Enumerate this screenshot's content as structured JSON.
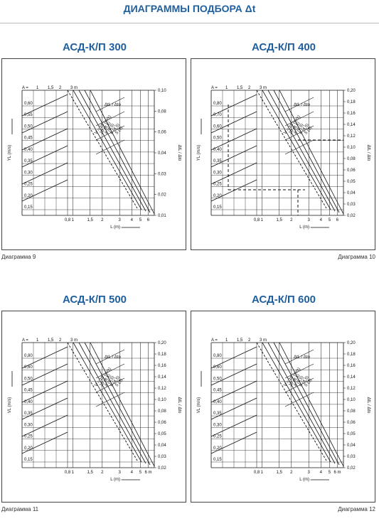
{
  "header": {
    "title": "ДИАГРАММЫ ПОДБОРА Δt"
  },
  "diagrams": [
    {
      "title": "АСД-К/П 300",
      "caption": "Диаграмма 9",
      "a_label": "A =",
      "a_ticks": [
        "1",
        "1,5",
        "2",
        "3 m"
      ],
      "y_label": "YL (m/s)",
      "y_ticks": [
        "0,60",
        "0,55",
        "0,50",
        "0,45",
        "0,40",
        "0,35",
        "0,30",
        "0,25",
        "0,20",
        "0,15"
      ],
      "x_label": "L (m)",
      "x_ticks": [
        "0,8",
        "1",
        "1,5",
        "2",
        "3",
        "4",
        "5",
        "6"
      ],
      "y2_label": "ΔtL / Δto",
      "y2_ticks": [
        "0,10",
        "0,08",
        "0,06",
        "0,04",
        "0,03",
        "0,02",
        "0,01"
      ],
      "legend": "ΔtL / Δto",
      "curve_labels": [
        "V = 15 (m/s)",
        "10 (8,5)",
        "8 (6,5)",
        "6 (4,5)",
        "5 (3)"
      ]
    },
    {
      "title": "АСД-К/П 400",
      "caption": "Диаграмма 10",
      "a_label": "A =",
      "a_ticks": [
        "1",
        "1,5",
        "2",
        "3 m"
      ],
      "y_label": "YL (m/s)",
      "y_ticks": [
        "0,80",
        "0,70",
        "0,60",
        "0,50",
        "0,40",
        "0,35",
        "0,30",
        "0,25",
        "0,20",
        "0,15"
      ],
      "x_label": "L (m)",
      "x_ticks": [
        "0,8",
        "1",
        "1,5",
        "2",
        "3",
        "4",
        "5",
        "6"
      ],
      "y2_label": "ΔtL / Δto",
      "y2_ticks": [
        "0,20",
        "0,18",
        "0,16",
        "0,14",
        "0,12",
        "0,10",
        "0,08",
        "0,06",
        "0,05",
        "0,04",
        "0,03",
        "0,02"
      ],
      "legend": "ΔtL / Δto",
      "curve_labels": [
        "V = 15 (m/s)",
        "10 (8,5)",
        "8 (6,5)",
        "6 (4,5)",
        "5 (3)"
      ]
    },
    {
      "title": "АСД-К/П 500",
      "caption": "Диаграмма 11",
      "a_label": "A =",
      "a_ticks": [
        "1",
        "1,5",
        "2",
        "3 m"
      ],
      "y_label": "VL (m/s)",
      "y_ticks": [
        "0,80",
        "0,60",
        "0,50",
        "0,45",
        "0,40",
        "0,35",
        "0,30",
        "0,25",
        "0,20",
        "0,15"
      ],
      "x_label": "L (m)",
      "x_ticks": [
        "0,8",
        "1",
        "1,5",
        "2",
        "3",
        "4",
        "5",
        "6 m"
      ],
      "y2_label": "ΔtL / Δto",
      "y2_ticks": [
        "0,20",
        "0,18",
        "0,16",
        "0,14",
        "0,12",
        "0,10",
        "0,08",
        "0,06",
        "0,05",
        "0,04",
        "0,03",
        "0,02"
      ],
      "legend": "ΔtL / Δto",
      "curve_labels": [
        "V = 15 (m/s)",
        "10 (8,5)",
        "8 (6,5)",
        "6 (4,5)",
        "5 (3)"
      ]
    },
    {
      "title": "АСД-К/П 600",
      "caption": "Диаграмма 12",
      "a_label": "A =",
      "a_ticks": [
        "1",
        "1,5",
        "2",
        "3 m"
      ],
      "y_label": "VL (m/s)",
      "y_ticks": [
        "0,80",
        "0,60",
        "0,50",
        "0,45",
        "0,40",
        "0,35",
        "0,30",
        "0,25",
        "0,20",
        "0,15"
      ],
      "x_label": "L (m)",
      "x_ticks": [
        "0,8",
        "1",
        "1,5",
        "2",
        "3",
        "4",
        "5",
        "6 m"
      ],
      "y2_label": "ΔtL / Δto",
      "y2_ticks": [
        "0,20",
        "0,18",
        "0,16",
        "0,14",
        "0,12",
        "0,10",
        "0,08",
        "0,06",
        "0,05",
        "0,04",
        "0,03",
        "0,02"
      ],
      "legend": "ΔtL / Δto",
      "curve_labels": [
        "V = 15 (m/s)",
        "10 (8,5)",
        "8 (6,5)",
        "6 (4,5)",
        "5 (3)"
      ]
    }
  ]
}
